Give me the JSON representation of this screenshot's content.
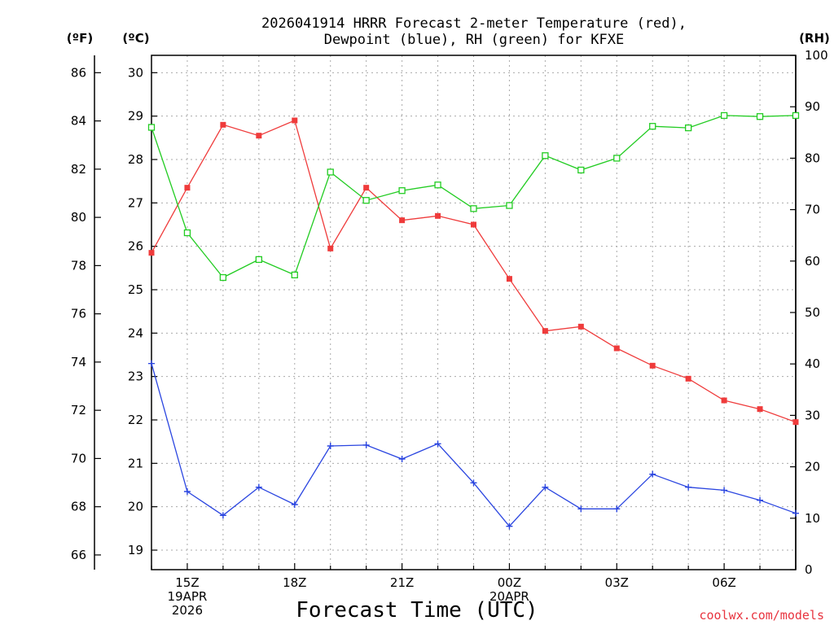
{
  "chart_data": {
    "type": "line",
    "title_line1": "2026041914 HRRR Forecast 2-meter Temperature (red),",
    "title_line2": "Dewpoint (blue), RH (green) for KFXE",
    "xlabel": "Forecast Time (UTC)",
    "credit": "coolwx.com/models",
    "units": {
      "fahrenheit": "(ºF)",
      "celsius": "(ºC)",
      "rh": "(RH)"
    },
    "x_hours": [
      14,
      15,
      16,
      17,
      18,
      19,
      20,
      21,
      22,
      23,
      24,
      25,
      26,
      27,
      28,
      29,
      30,
      31,
      32
    ],
    "x_ticks": [
      {
        "hour": 15,
        "lines": [
          "15Z",
          "19APR",
          "2026"
        ]
      },
      {
        "hour": 18,
        "lines": [
          "18Z"
        ]
      },
      {
        "hour": 21,
        "lines": [
          "21Z"
        ]
      },
      {
        "hour": 24,
        "lines": [
          "00Z",
          "20APR"
        ]
      },
      {
        "hour": 27,
        "lines": [
          "03Z"
        ]
      },
      {
        "hour": 30,
        "lines": [
          "06Z"
        ]
      }
    ],
    "y_celsius_range": [
      18.55,
      30.4
    ],
    "y_celsius_ticks": [
      19,
      20,
      21,
      22,
      23,
      24,
      25,
      26,
      27,
      28,
      29,
      30
    ],
    "y_fahrenheit_ticks": [
      66,
      68,
      70,
      72,
      74,
      76,
      78,
      80,
      82,
      84,
      86
    ],
    "y_rh_range": [
      0,
      100
    ],
    "y_rh_ticks": [
      0,
      10,
      20,
      30,
      40,
      50,
      60,
      70,
      80,
      90,
      100
    ],
    "grid": true,
    "series": [
      {
        "name": "Temperature",
        "color": "#ef3b3b",
        "axis": "celsius",
        "marker": "filled-square",
        "values": [
          25.85,
          27.35,
          28.8,
          28.55,
          28.9,
          25.95,
          27.35,
          26.6,
          26.7,
          26.5,
          25.25,
          24.05,
          24.15,
          23.65,
          23.25,
          22.95,
          22.45,
          22.25,
          21.95
        ]
      },
      {
        "name": "Dewpoint",
        "color": "#2a45e0",
        "axis": "celsius",
        "marker": "plus",
        "values": [
          23.3,
          20.35,
          19.8,
          20.45,
          20.05,
          21.4,
          21.42,
          21.1,
          21.45,
          20.55,
          19.55,
          20.45,
          19.95,
          19.95,
          20.75,
          20.45,
          20.38,
          20.15,
          19.85
        ]
      },
      {
        "name": "RH",
        "color": "#22cc22",
        "axis": "rh",
        "marker": "open-square",
        "values": [
          86,
          65.5,
          56.8,
          60.3,
          57.3,
          77.3,
          71.8,
          73.7,
          74.8,
          70.2,
          70.8,
          80.5,
          77.7,
          80,
          86.2,
          85.9,
          88.3,
          88.1,
          88.3
        ]
      }
    ]
  }
}
